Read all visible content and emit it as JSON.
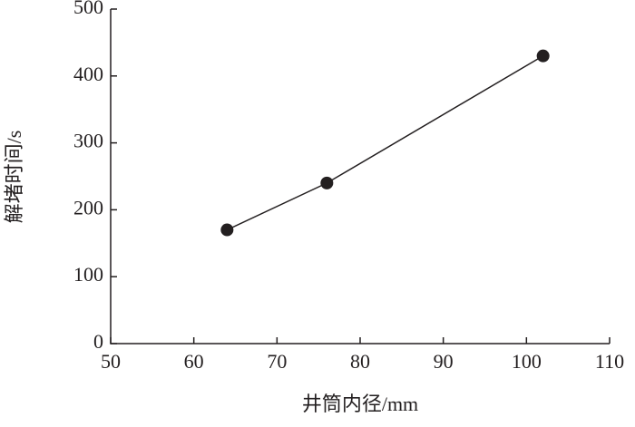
{
  "chart_data": {
    "type": "line",
    "x_label": "井筒内径/mm",
    "y_label": "解堵时间/s",
    "x": [
      64,
      76,
      102
    ],
    "series": [
      {
        "values": [
          170,
          240,
          430
        ],
        "color": "#231f20"
      }
    ],
    "xlim": [
      50,
      110
    ],
    "xticks": [
      50,
      60,
      70,
      80,
      90,
      100,
      110
    ],
    "ylim": [
      0,
      500
    ],
    "yticks": [
      0,
      100,
      200,
      300,
      400,
      500
    ],
    "grid": false
  }
}
